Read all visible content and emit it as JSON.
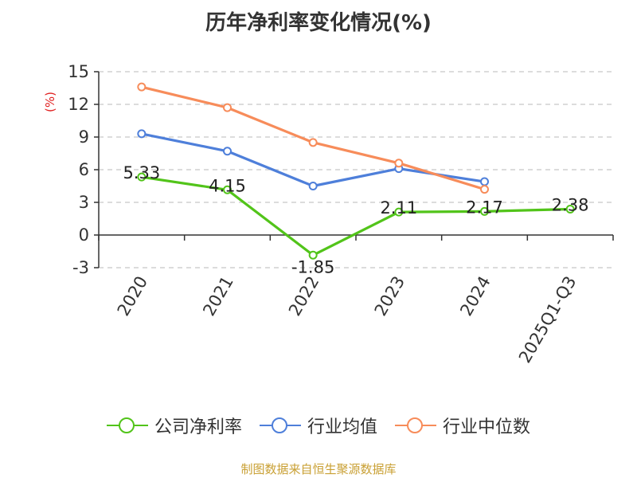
{
  "title": "历年净利率变化情况(%)",
  "source": "制图数据来自恒生聚源数据库",
  "chart_data": {
    "type": "line",
    "title": "历年净利率变化情况(%)",
    "ylabel": "(%)",
    "xlabel": "",
    "categories": [
      "2020",
      "2021",
      "2022",
      "2023",
      "2024",
      "2025Q1-Q3"
    ],
    "yticks": [
      -3,
      0,
      3,
      6,
      9,
      12,
      15
    ],
    "ylim": [
      -3,
      15
    ],
    "grid": true,
    "legend_position": "bottom",
    "series": [
      {
        "name": "公司净利率",
        "color": "#52c41a",
        "values": [
          5.33,
          4.15,
          -1.85,
          2.11,
          2.17,
          2.38
        ],
        "labels": [
          "5.33",
          "4.15",
          "-1.85",
          "2.11",
          "2.17",
          "2.38"
        ]
      },
      {
        "name": "行业均值",
        "color": "#4e7fda",
        "values": [
          9.3,
          7.7,
          4.5,
          6.1,
          4.9,
          null
        ]
      },
      {
        "name": "行业中位数",
        "color": "#f78c5a",
        "values": [
          13.6,
          11.7,
          8.5,
          6.6,
          4.2,
          null
        ]
      }
    ]
  }
}
